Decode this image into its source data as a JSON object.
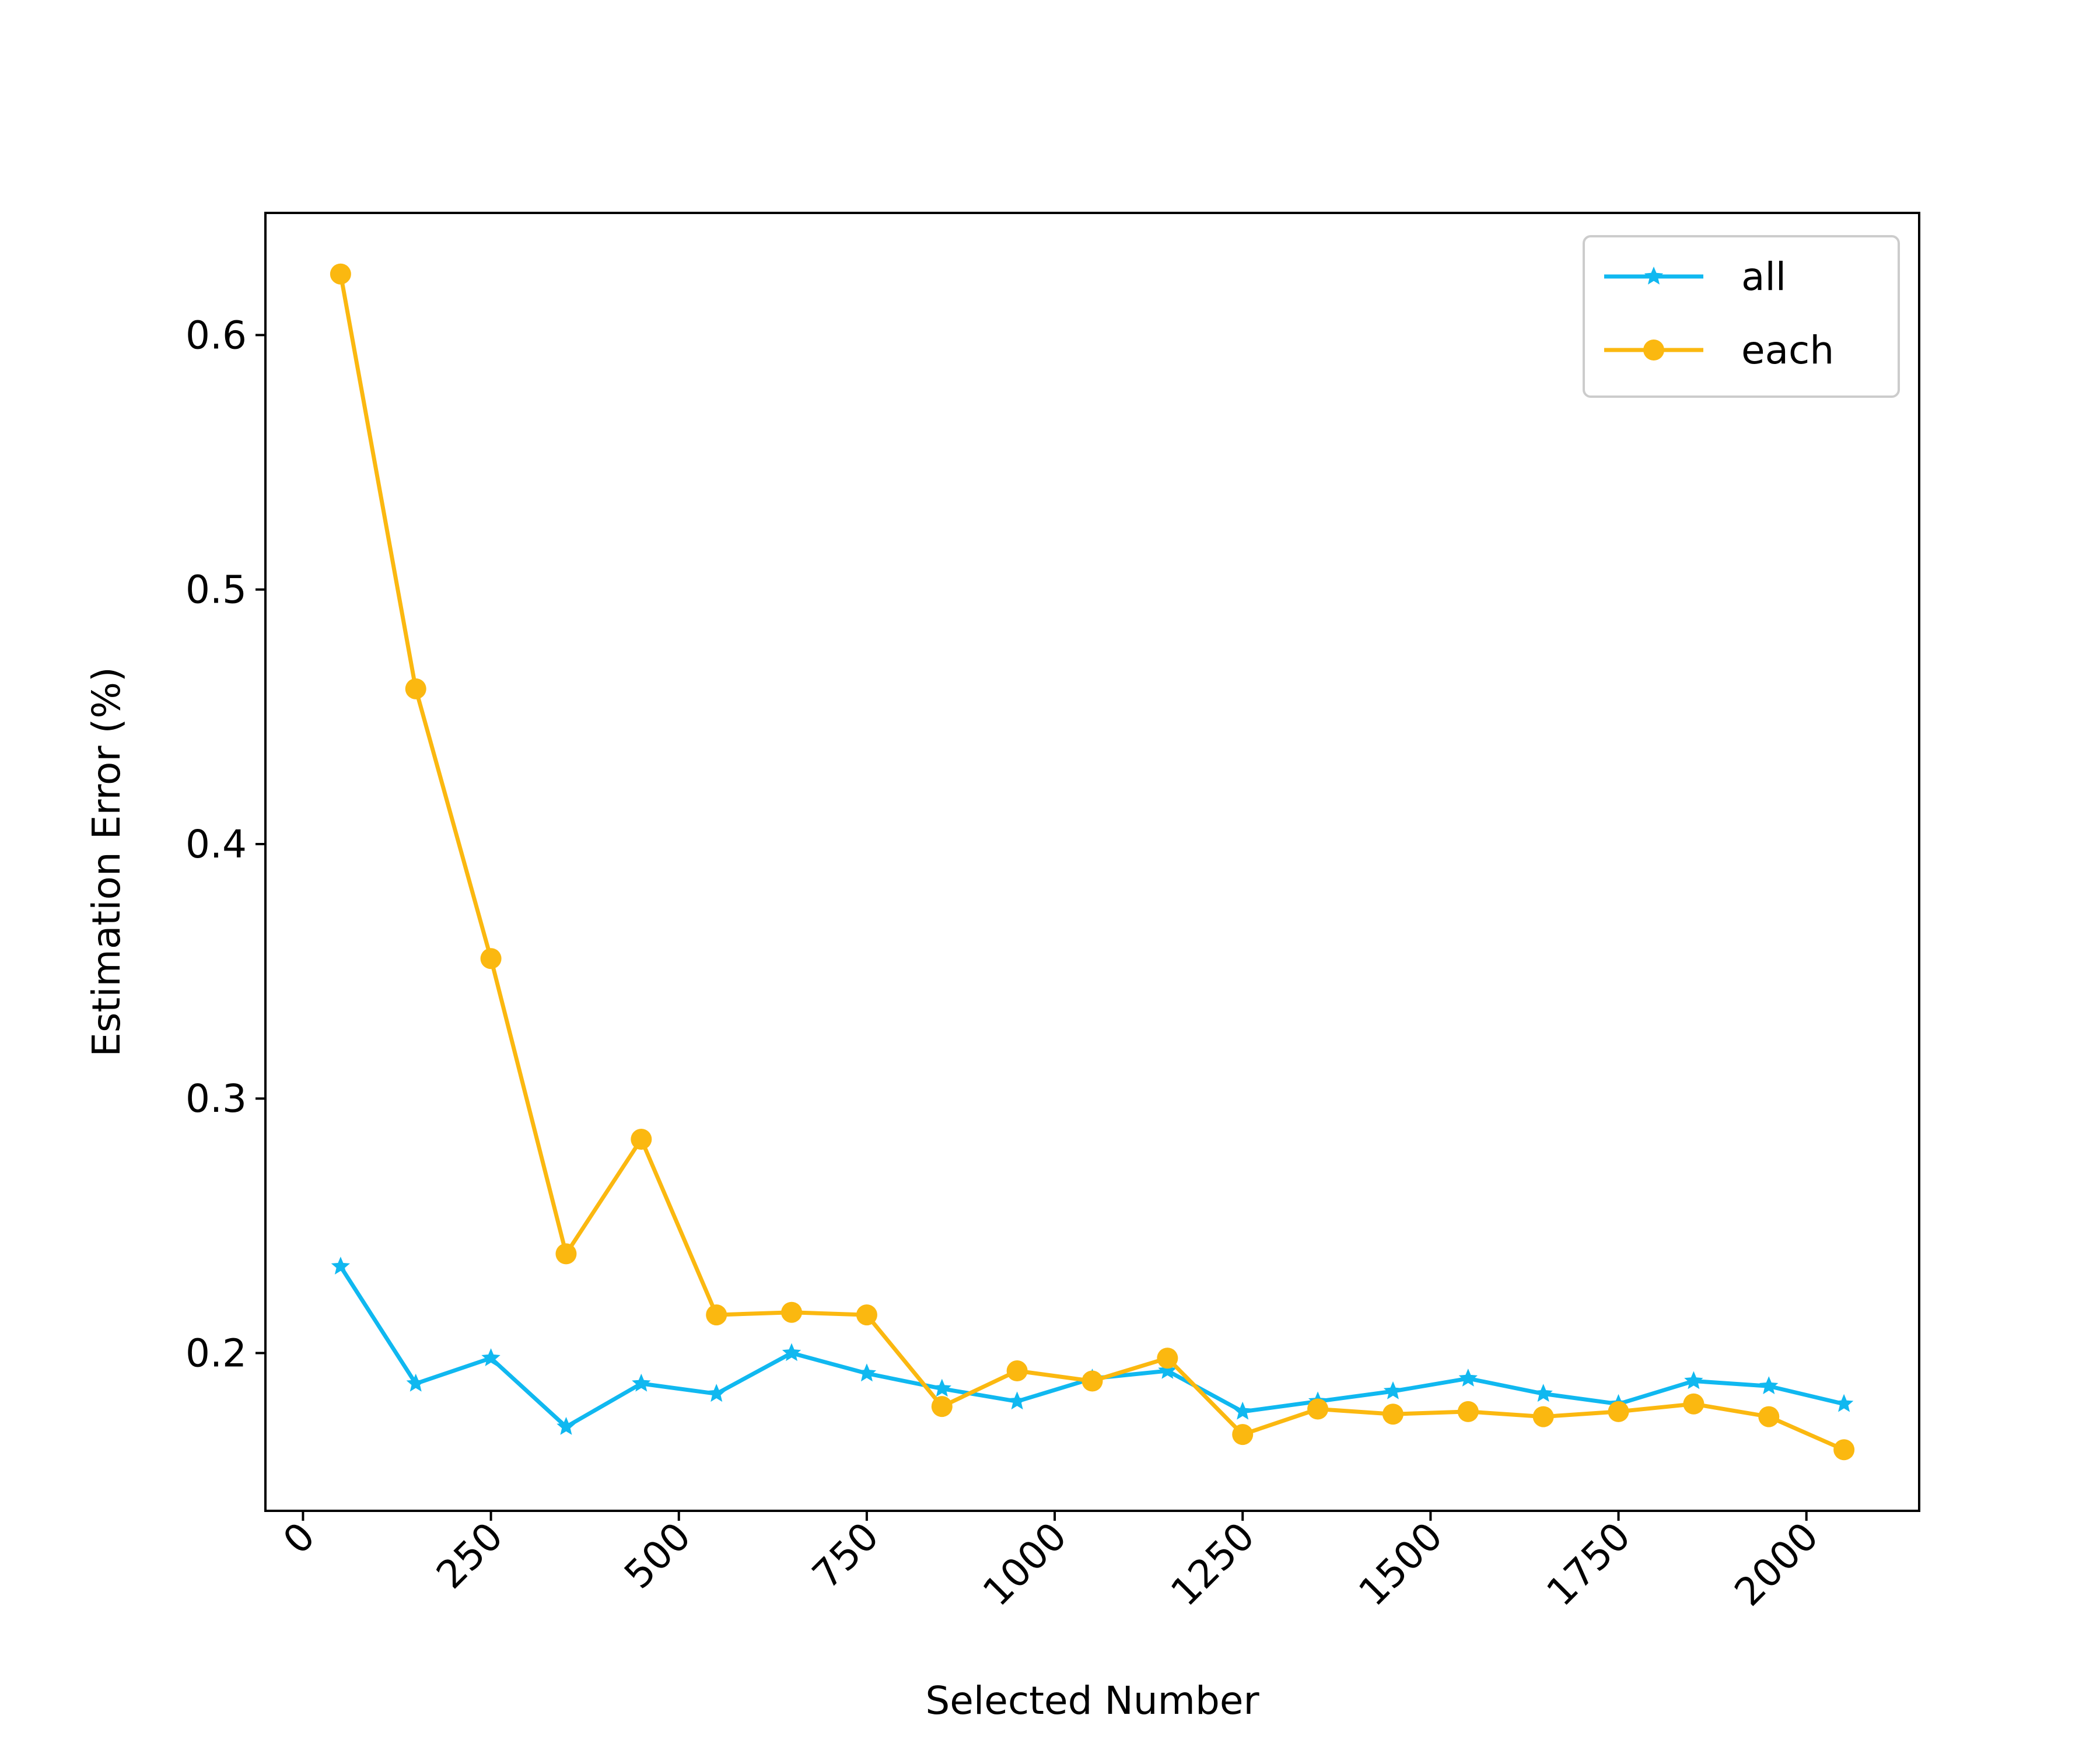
{
  "chart_data": {
    "type": "line",
    "title": "",
    "xlabel": "Selected Number",
    "ylabel": "Estimation Error (%)",
    "xlim": [
      -50,
      2150
    ],
    "ylim": [
      0.138,
      0.648
    ],
    "xticks": [
      0,
      250,
      500,
      750,
      1000,
      1250,
      1500,
      1750,
      2000
    ],
    "xtick_labels": [
      "0",
      "250",
      "500",
      "750",
      "1000",
      "1250",
      "1500",
      "1750",
      "2000"
    ],
    "yticks": [
      0.2,
      0.3,
      0.4,
      0.5,
      0.6
    ],
    "ytick_labels": [
      "0.2",
      "0.3",
      "0.4",
      "0.5",
      "0.6"
    ],
    "grid": false,
    "legend_position": "top-right",
    "x": [
      50,
      150,
      250,
      350,
      450,
      550,
      650,
      750,
      850,
      950,
      1050,
      1150,
      1250,
      1350,
      1450,
      1550,
      1650,
      1750,
      1850,
      1950,
      2050
    ],
    "series": [
      {
        "name": "all",
        "color": "#10b8f0",
        "marker": "star",
        "values": [
          0.234,
          0.188,
          0.198,
          0.171,
          0.188,
          0.184,
          0.2,
          0.192,
          0.186,
          0.181,
          0.19,
          0.193,
          0.177,
          0.181,
          0.185,
          0.19,
          0.184,
          0.18,
          0.189,
          0.187,
          0.18
        ]
      },
      {
        "name": "each",
        "color": "#fbb810",
        "marker": "circle",
        "values": [
          0.624,
          0.461,
          0.355,
          0.239,
          0.284,
          0.215,
          0.216,
          0.215,
          0.179,
          0.193,
          0.189,
          0.198,
          0.168,
          0.178,
          0.176,
          0.177,
          0.175,
          0.177,
          0.18,
          0.175,
          0.162
        ]
      }
    ]
  }
}
